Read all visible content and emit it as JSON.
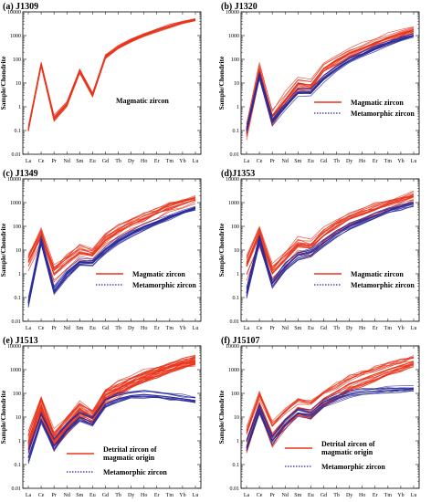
{
  "figure": {
    "ylabel": "Sample/Chondrite",
    "elements": [
      "La",
      "Ce",
      "Pr",
      "Nd",
      "Sm",
      "Eu",
      "Gd",
      "Tb",
      "Dy",
      "Ho",
      "Er",
      "Tm",
      "Yb",
      "Lu"
    ],
    "ytick_labels": [
      "0.01",
      "0.1",
      "1",
      "10",
      "100",
      "1000",
      "10000"
    ],
    "colors": {
      "magmatic": "#e8351c",
      "metamorphic": "#2a2a9a",
      "frame": "#000000"
    }
  },
  "chart_data": [
    {
      "type": "line",
      "panel": "a",
      "title": "(a) J1309",
      "ylim": [
        0.01,
        10000
      ],
      "log_y": true,
      "legend": {
        "magmatic": "Magmatic zircon",
        "metamorphic": ""
      },
      "series": [
        {
          "name": "Magmatic zircon",
          "group": "magmatic",
          "count": 14,
          "spread": 0.15,
          "values": [
            0.1,
            55,
            0.3,
            1.2,
            30,
            3,
            120,
            300,
            600,
            1000,
            1600,
            2400,
            3500,
            4500
          ]
        }
      ]
    },
    {
      "type": "line",
      "panel": "b",
      "title": "(b) J1320",
      "ylim": [
        0.01,
        10000
      ],
      "log_y": true,
      "legend": {
        "magmatic": "Magmatic zircon",
        "metamorphic": "Metamorphic zircon"
      },
      "series": [
        {
          "name": "Magmatic zircon",
          "group": "magmatic",
          "count": 16,
          "spread": 0.35,
          "values": [
            0.1,
            35,
            0.4,
            2,
            10,
            8,
            40,
            90,
            180,
            300,
            500,
            800,
            1200,
            1800
          ]
        },
        {
          "name": "Metamorphic zircon",
          "group": "metamorphic",
          "count": 10,
          "spread": 0.2,
          "values": [
            0.1,
            20,
            0.25,
            1,
            4,
            4,
            15,
            40,
            90,
            160,
            280,
            450,
            700,
            1000
          ]
        }
      ]
    },
    {
      "type": "line",
      "panel": "c",
      "title": "(c) J1349",
      "ylim": [
        0.01,
        10000
      ],
      "log_y": true,
      "legend": {
        "magmatic": "Magmatic zircon",
        "metamorphic": "Metamorphic zircon"
      },
      "series": [
        {
          "name": "Magmatic zircon",
          "group": "magmatic",
          "count": 14,
          "spread": 0.45,
          "values": [
            3,
            40,
            1,
            3,
            8,
            6,
            25,
            60,
            120,
            200,
            350,
            600,
            900,
            1300
          ]
        },
        {
          "name": "Metamorphic zircon",
          "group": "metamorphic",
          "count": 12,
          "spread": 0.2,
          "values": [
            0.06,
            25,
            0.2,
            1,
            3,
            3,
            10,
            25,
            50,
            90,
            150,
            250,
            400,
            600
          ]
        }
      ]
    },
    {
      "type": "line",
      "panel": "d",
      "title": "(d)J1353",
      "ylim": [
        0.01,
        10000
      ],
      "log_y": true,
      "legend": {
        "magmatic": "Magmatic zircon",
        "metamorphic": "Metamorphic zircon"
      },
      "series": [
        {
          "name": "Magmatic zircon",
          "group": "magmatic",
          "count": 16,
          "spread": 0.45,
          "values": [
            2,
            40,
            1,
            4,
            15,
            12,
            40,
            100,
            200,
            320,
            500,
            800,
            1200,
            1800
          ]
        },
        {
          "name": "Metamorphic zircon",
          "group": "metamorphic",
          "count": 10,
          "spread": 0.25,
          "values": [
            0.15,
            30,
            0.4,
            2,
            6,
            8,
            20,
            50,
            100,
            170,
            280,
            450,
            650,
            900
          ]
        }
      ]
    },
    {
      "type": "line",
      "panel": "e",
      "title": "(e) J1513",
      "ylim": [
        0.01,
        10000
      ],
      "log_y": true,
      "legend": {
        "magmatic": "Detrital zircon of magmatic origin",
        "metamorphic": "Metamorphic zircon"
      },
      "series": [
        {
          "name": "Detrital zircon of magmatic origin",
          "group": "magmatic",
          "count": 28,
          "spread": 0.5,
          "values": [
            0.8,
            30,
            1,
            5,
            20,
            10,
            80,
            150,
            300,
            500,
            800,
            1200,
            1800,
            2500
          ]
        },
        {
          "name": "Metamorphic zircon",
          "group": "metamorphic",
          "count": 10,
          "spread": 0.3,
          "values": [
            0.2,
            8,
            0.6,
            3,
            10,
            6,
            35,
            60,
            80,
            90,
            80,
            70,
            60,
            50
          ]
        }
      ]
    },
    {
      "type": "line",
      "panel": "f",
      "title": "(f) J15107",
      "ylim": [
        0.01,
        10000
      ],
      "log_y": true,
      "legend": {
        "magmatic": "Detrital zircon of magmatic origin",
        "metamorphic": "Metamorphic zircon"
      },
      "series": [
        {
          "name": "Detrital zircon of magmatic origin",
          "group": "magmatic",
          "count": 20,
          "spread": 0.5,
          "values": [
            1,
            40,
            2,
            8,
            25,
            20,
            60,
            120,
            250,
            400,
            650,
            1000,
            1500,
            2200
          ]
        },
        {
          "name": "Metamorphic zircon",
          "group": "metamorphic",
          "count": 8,
          "spread": 0.3,
          "values": [
            0.5,
            20,
            1,
            5,
            15,
            12,
            35,
            60,
            90,
            110,
            120,
            130,
            140,
            150
          ]
        }
      ]
    }
  ]
}
